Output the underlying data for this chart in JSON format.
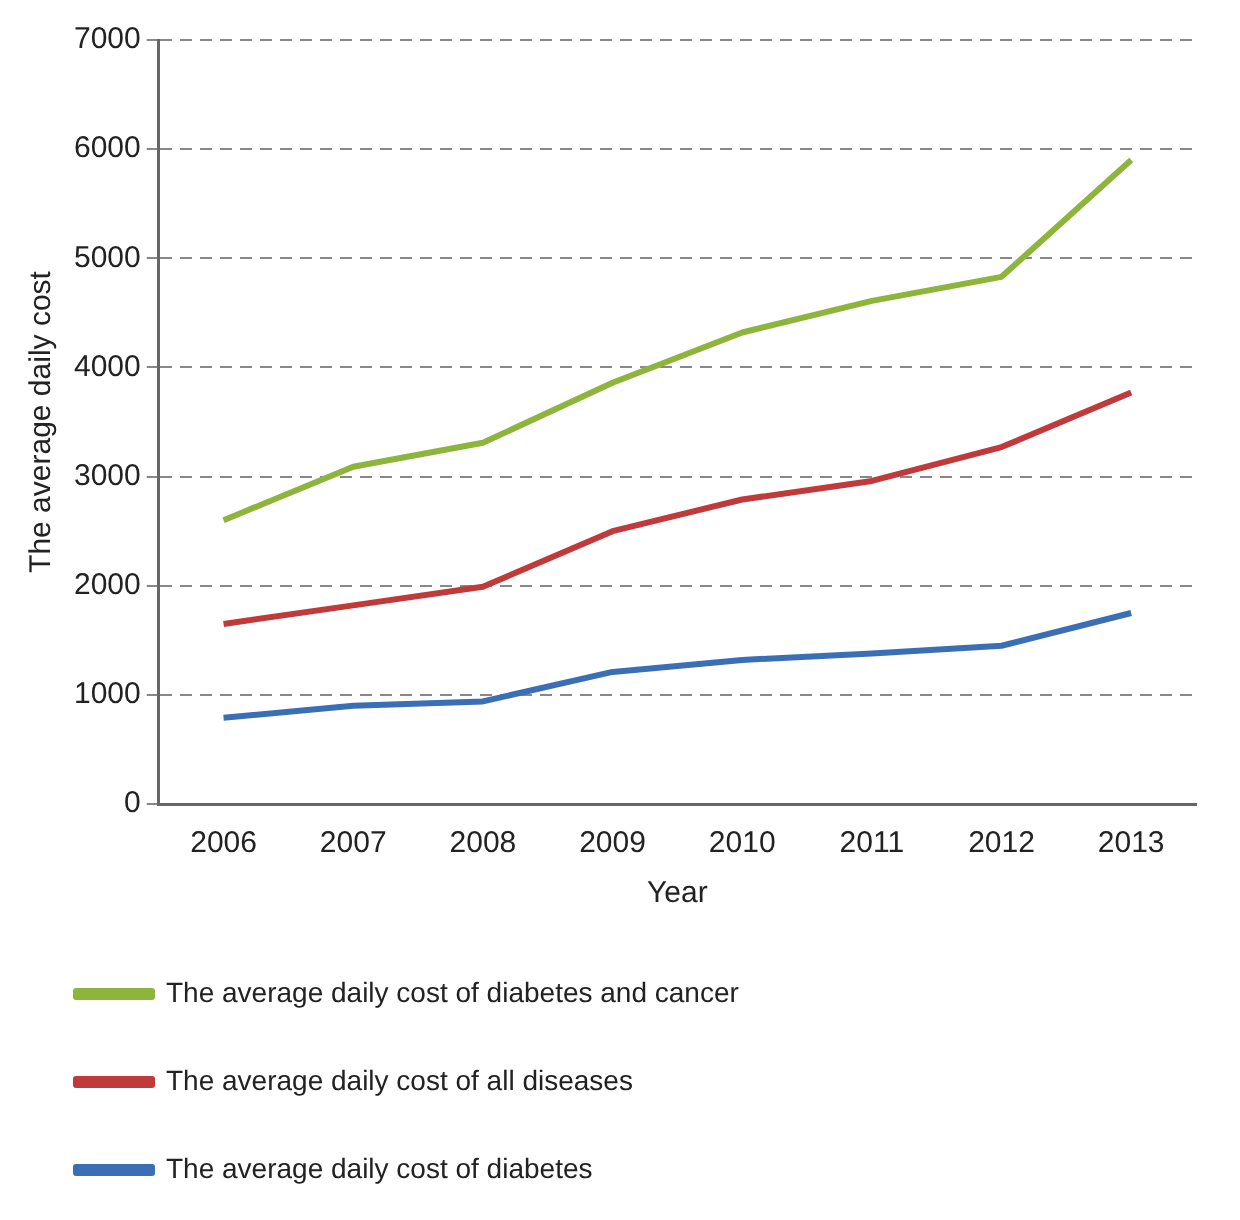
{
  "chart_data": {
    "type": "line",
    "xlabel": "Year",
    "ylabel": "The average daily cost",
    "categories": [
      "2006",
      "2007",
      "2008",
      "2009",
      "2010",
      "2011",
      "2012",
      "2013"
    ],
    "series": [
      {
        "name": "The average daily cost of diabetes and cancer",
        "color": "#8db53c",
        "values": [
          2600,
          3090,
          3310,
          3860,
          4320,
          4610,
          4830,
          5900
        ]
      },
      {
        "name": "The average daily cost of all diseases",
        "color": "#c0393b",
        "values": [
          1650,
          1820,
          1990,
          2500,
          2790,
          2960,
          3270,
          3770
        ]
      },
      {
        "name": "The average daily cost of diabetes",
        "color": "#3a6fb5",
        "values": [
          790,
          900,
          940,
          1210,
          1320,
          1380,
          1450,
          1750
        ]
      }
    ],
    "ylim": [
      0,
      7000
    ],
    "yticks": [
      0,
      1000,
      2000,
      3000,
      4000,
      5000,
      6000,
      7000
    ],
    "grid": "y",
    "legend": "bottom",
    "marker": "none",
    "line_style": "solid"
  }
}
